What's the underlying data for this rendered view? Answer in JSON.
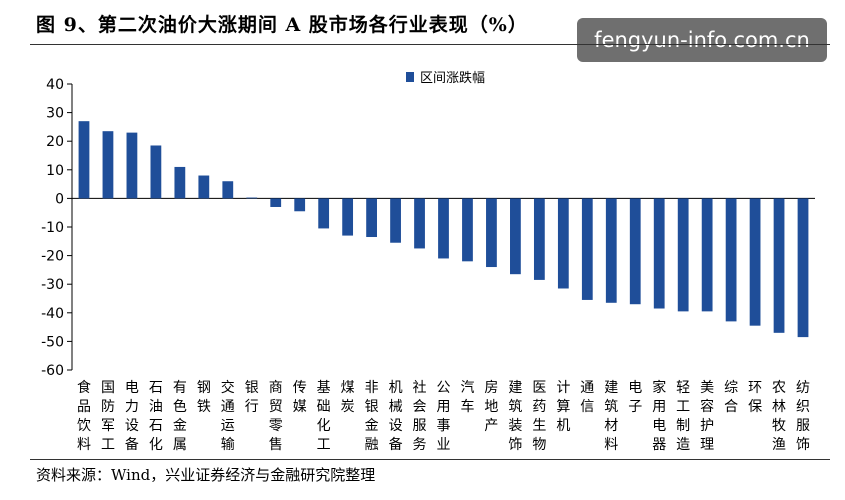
{
  "header": {
    "title": "图 9、第二次油价大涨期间 A 股市场各行业表现（%）",
    "watermark": "fengyun-info.com.cn"
  },
  "footer": {
    "source": "资料来源：Wind，兴业证券经济与金融研究院整理"
  },
  "colors": {
    "bar": "#1F4E99",
    "axis": "#000000"
  },
  "chart_data": {
    "type": "bar",
    "title": "",
    "xlabel": "",
    "ylabel": "",
    "ylim": [
      -60,
      40
    ],
    "yticks": [
      40,
      30,
      20,
      10,
      0,
      -10,
      -20,
      -30,
      -40,
      -50,
      -60
    ],
    "legend": {
      "position": "top-center",
      "entries": [
        "区间涨跌幅"
      ]
    },
    "categories": [
      "食品饮料",
      "国防军工",
      "电力设备",
      "石油石化",
      "有色金属",
      "钢铁",
      "交通运输",
      "银行",
      "商贸零售",
      "传媒",
      "基础化工",
      "煤炭",
      "非银金融",
      "机械设备",
      "社会服务",
      "公用事业",
      "汽车",
      "房地产",
      "建筑装饰",
      "医药生物",
      "计算机",
      "通信",
      "建筑材料",
      "电子",
      "家用电器",
      "轻工制造",
      "美容护理",
      "综合",
      "环保",
      "农林牧渔",
      "纺织服饰"
    ],
    "series": [
      {
        "name": "区间涨跌幅",
        "values": [
          27,
          23.5,
          23,
          18.5,
          11,
          8,
          6,
          0.3,
          -3,
          -4.5,
          -10.5,
          -13,
          -13.5,
          -15.5,
          -17.5,
          -21,
          -22,
          -24,
          -26.5,
          -28.5,
          -31.5,
          -35.5,
          -36.5,
          -37,
          -38.5,
          -39.5,
          -39.5,
          -43,
          -44.5,
          -47,
          -48.5
        ]
      }
    ]
  }
}
